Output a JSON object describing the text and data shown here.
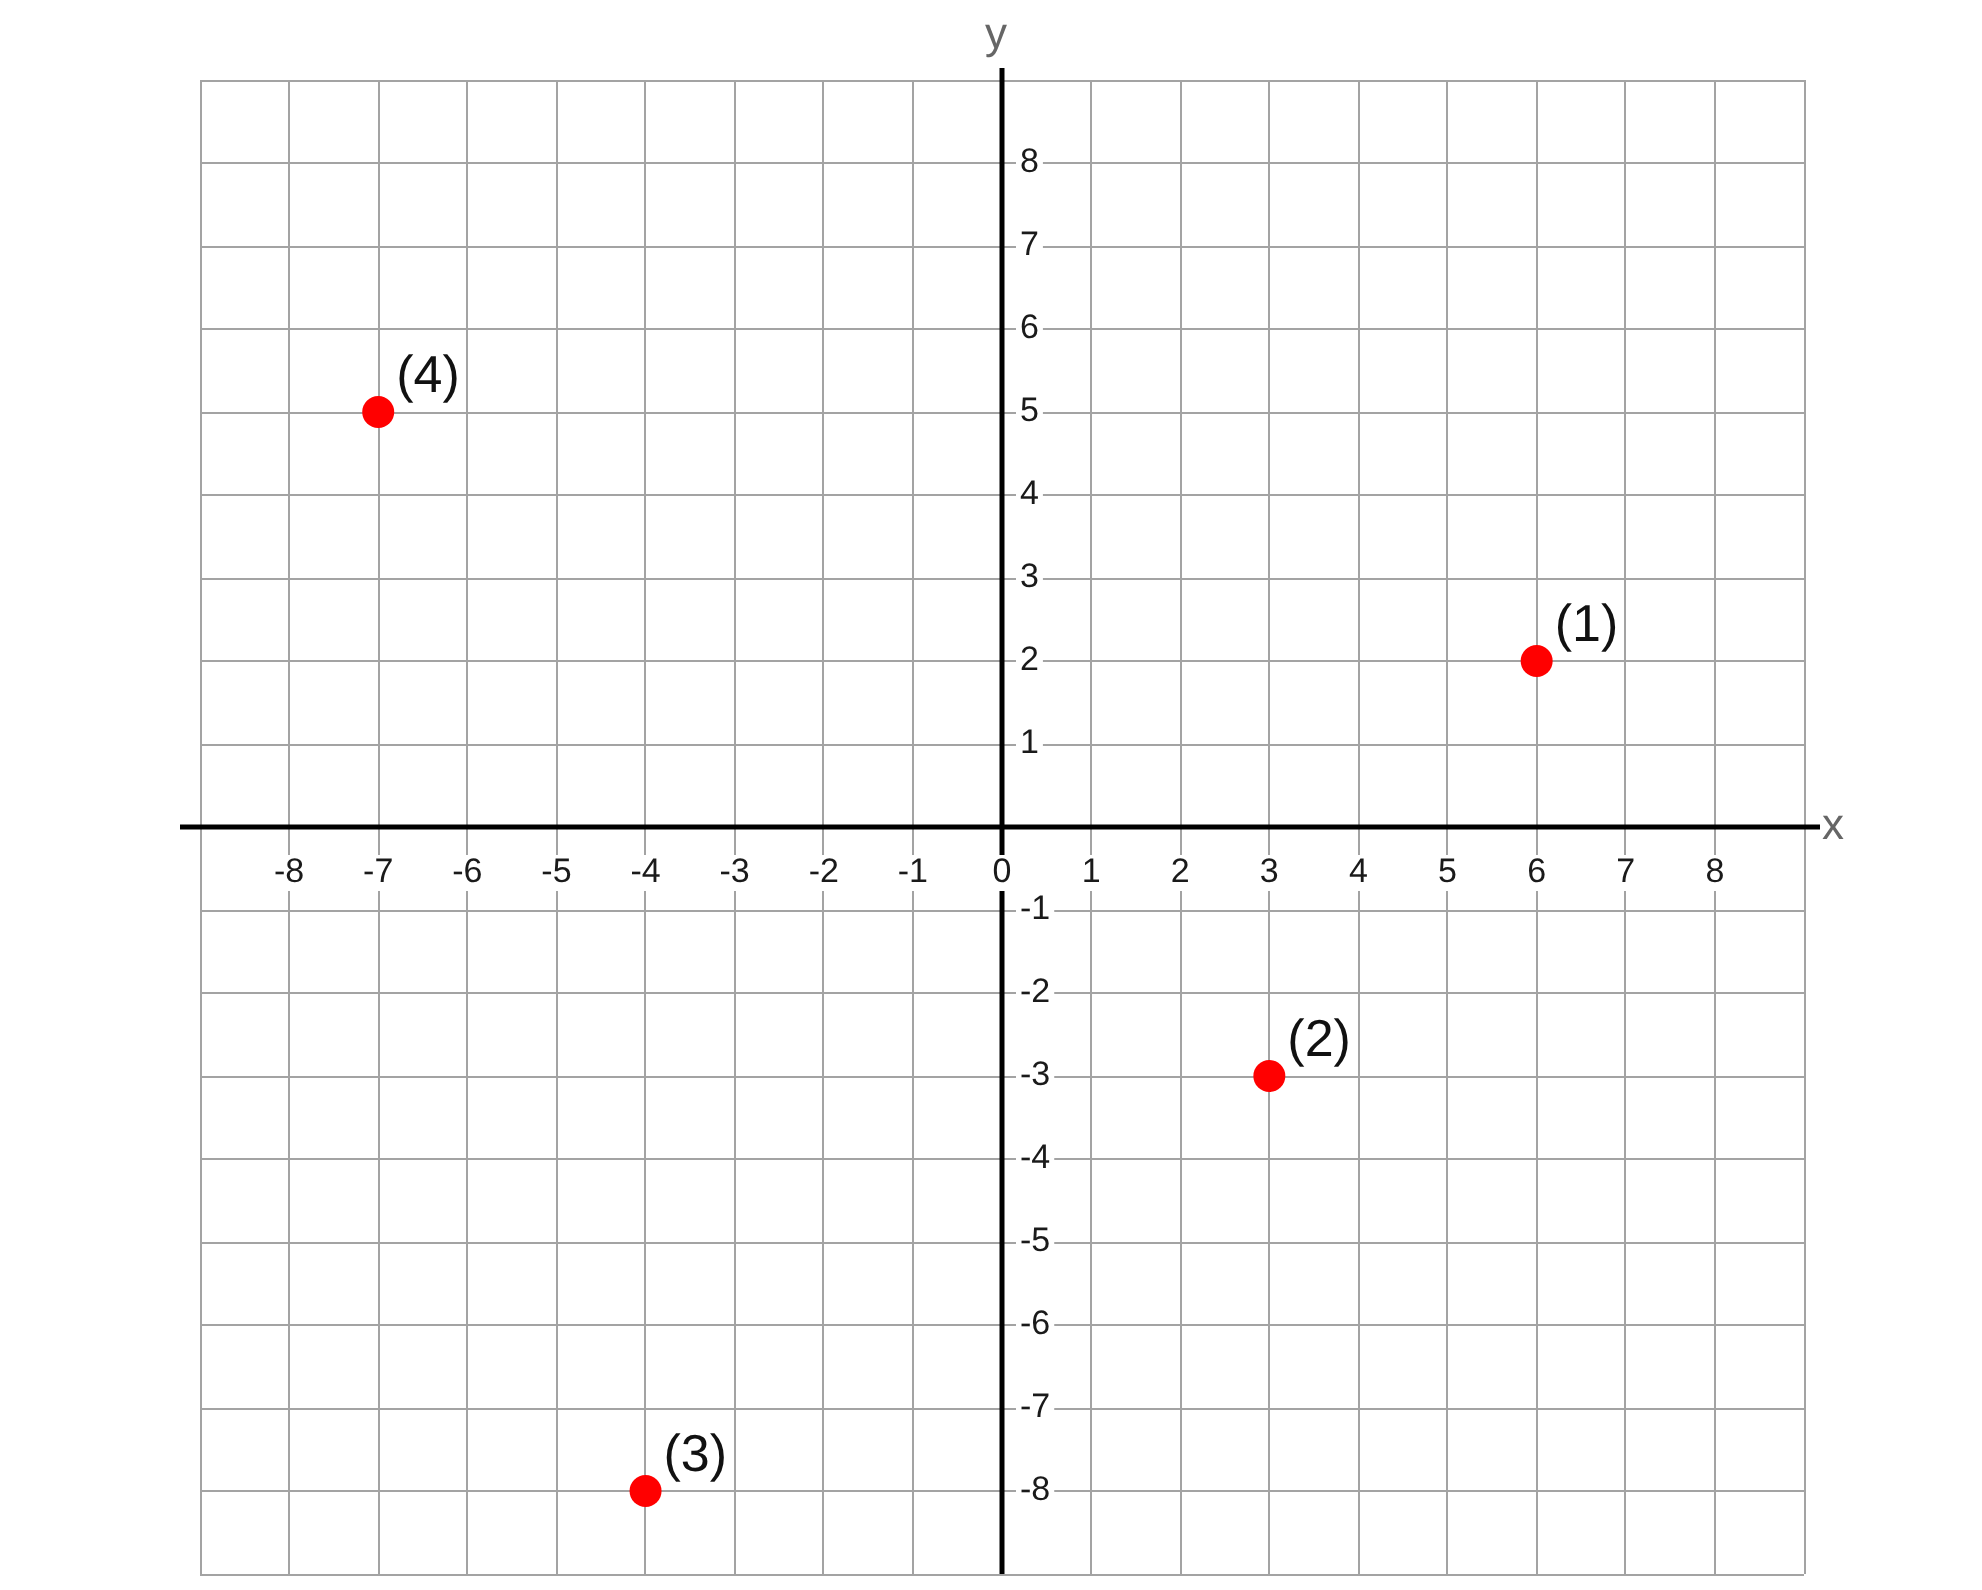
{
  "chart_data": {
    "type": "scatter",
    "xlabel": "x",
    "ylabel": "y",
    "x": [
      6,
      3,
      -4,
      -7
    ],
    "values": [
      2,
      -3,
      -8,
      5
    ],
    "color": "#ff0000",
    "marker": "circle",
    "xlim": [
      -9,
      9
    ],
    "ylim": [
      -9,
      9
    ],
    "xticks": [
      {
        "value": -9,
        "label": null
      },
      -8,
      -7,
      -6,
      -5,
      -4,
      -3,
      -2,
      -1,
      0,
      1,
      2,
      3,
      4,
      5,
      6,
      7,
      8,
      {
        "value": 9,
        "label": null
      }
    ],
    "yticks": [
      {
        "value": -9,
        "label": null
      },
      -8,
      -7,
      -6,
      -5,
      -4,
      -3,
      -2,
      -1,
      {
        "value": 0,
        "label": null
      },
      1,
      2,
      3,
      4,
      5,
      6,
      7,
      8,
      {
        "value": 9,
        "label": null
      }
    ],
    "grid": true,
    "legend": false,
    "annotations": [
      {
        "text": "(1)",
        "x": 6,
        "y": 2
      },
      {
        "text": "(2)",
        "x": 3,
        "y": -3
      },
      {
        "text": "(3)",
        "x": -4,
        "y": -8
      },
      {
        "text": "(4)",
        "x": -7,
        "y": 5
      }
    ]
  }
}
